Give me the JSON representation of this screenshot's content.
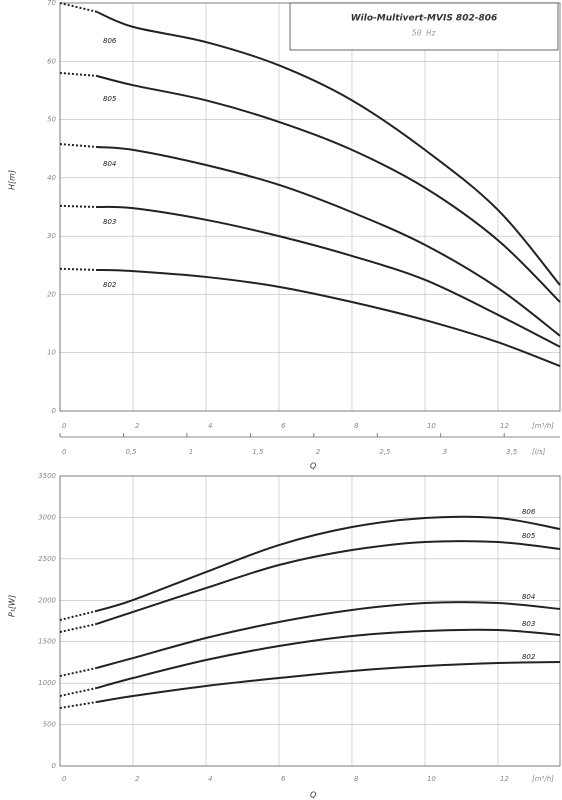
{
  "chart_data": [
    {
      "type": "line",
      "title": "Wilo-Multivert-MVIS 802-806",
      "subtitle": "50 Hz",
      "x_label": "Q",
      "y_label": "H[m]",
      "x_unit": "[m³/h]",
      "x2_unit": "[l/s]",
      "x": [
        0,
        1,
        2,
        4,
        6,
        8,
        10,
        12,
        13.7
      ],
      "series": [
        {
          "name": "806",
          "color": "#222222",
          "values": [
            70,
            68.5,
            65.9,
            63.3,
            59.3,
            53.3,
            44.8,
            34.5,
            21.6
          ]
        },
        {
          "name": "805",
          "color": "#222222",
          "values": [
            58,
            57.5,
            55.9,
            53.3,
            49.6,
            44.8,
            38.3,
            29.3,
            18.7
          ]
        },
        {
          "name": "804",
          "color": "#222222",
          "values": [
            45.8,
            45.3,
            44.8,
            42.2,
            38.8,
            34.1,
            28.5,
            21.1,
            12.9
          ]
        },
        {
          "name": "803",
          "color": "#222222",
          "values": [
            35.2,
            35,
            34.8,
            32.8,
            30,
            26.6,
            22.5,
            16.5,
            11
          ]
        },
        {
          "name": "802",
          "color": "#222222",
          "values": [
            24.4,
            24.2,
            24,
            23,
            21.3,
            18.7,
            15.6,
            11.8,
            7.7
          ]
        }
      ],
      "dotted_until_x": 1,
      "xlim": [
        0,
        13.7
      ],
      "ylim": [
        0,
        70
      ],
      "xticks": [
        0,
        2,
        4,
        6,
        8,
        10,
        12
      ],
      "yticks": [
        0,
        10,
        20,
        30,
        40,
        50,
        60,
        70
      ],
      "x2lim": [
        0,
        3.94
      ],
      "x2ticks": [
        0,
        {
          "value": 0.5,
          "label": "0,5"
        },
        1,
        {
          "value": 1.5,
          "label": "1,5"
        },
        2,
        {
          "value": 2.5,
          "label": "2,5"
        },
        3,
        {
          "value": 3.5,
          "label": "3,5"
        }
      ],
      "grid": true
    },
    {
      "type": "line",
      "x_label": "Q",
      "y_label": "P₁[W]",
      "x_unit": "[m³/h]",
      "x": [
        0,
        1,
        2,
        4,
        6,
        8,
        10,
        12,
        13.7
      ],
      "series": [
        {
          "name": "806",
          "color": "#222222",
          "values": [
            1762,
            1871,
            2003,
            2341,
            2667,
            2884,
            2993,
            2993,
            2860
          ]
        },
        {
          "name": "805",
          "color": "#222222",
          "values": [
            1617,
            1714,
            1859,
            2148,
            2426,
            2607,
            2703,
            2703,
            2619
          ]
        },
        {
          "name": "804",
          "color": "#222222",
          "values": [
            1086,
            1183,
            1303,
            1545,
            1738,
            1883,
            1967,
            1967,
            1895
          ]
        },
        {
          "name": "803",
          "color": "#222222",
          "values": [
            845,
            941,
            1062,
            1279,
            1448,
            1569,
            1629,
            1641,
            1581
          ]
        },
        {
          "name": "802",
          "color": "#222222",
          "values": [
            700,
            772,
            845,
            966,
            1062,
            1147,
            1207,
            1243,
            1255
          ]
        }
      ],
      "dotted_until_x": 1,
      "xlim": [
        0,
        13.7
      ],
      "ylim": [
        0,
        3500
      ],
      "xticks": [
        0,
        2,
        4,
        6,
        8,
        10,
        12
      ],
      "yticks": [
        0,
        500,
        1000,
        1500,
        2000,
        2500,
        3000,
        3500
      ],
      "grid": true
    }
  ]
}
